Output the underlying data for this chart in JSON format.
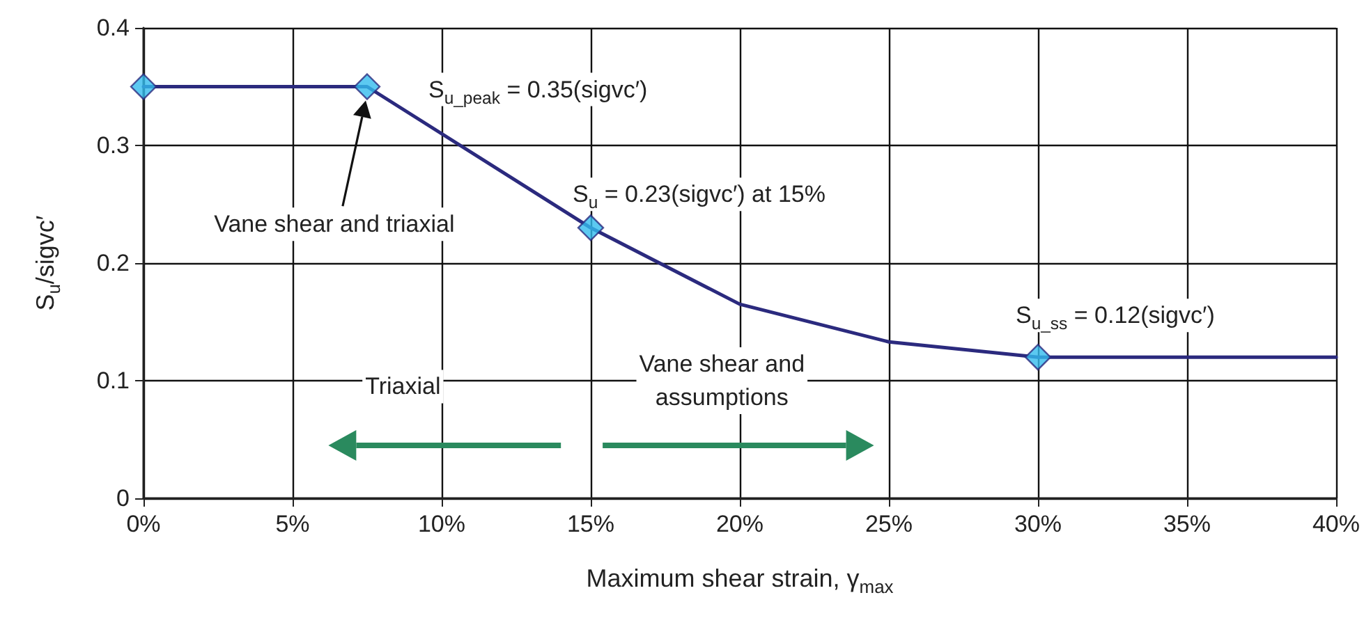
{
  "chart_data": {
    "type": "line",
    "xlabel": "Maximum shear strain, γ$_{max}$",
    "ylabel": "S$_{u}$/sigvc′",
    "xlim": [
      0,
      40
    ],
    "xticks": [
      {
        "value": 0,
        "label": "0%"
      },
      {
        "value": 5,
        "label": "5%"
      },
      {
        "value": 10,
        "label": "10%"
      },
      {
        "value": 15,
        "label": "15%"
      },
      {
        "value": 20,
        "label": "20%"
      },
      {
        "value": 25,
        "label": "25%"
      },
      {
        "value": 30,
        "label": "30%"
      },
      {
        "value": 35,
        "label": "35%"
      },
      {
        "value": 40,
        "label": "40%"
      }
    ],
    "ylim": [
      0,
      0.4
    ],
    "yticks": [
      0,
      0.1,
      0.2,
      0.3,
      0.4
    ],
    "grid": true,
    "series": [
      {
        "color": "#2b2a7e",
        "x": [
          0,
          7.5,
          15,
          20,
          25,
          30,
          40
        ],
        "values": [
          0.35,
          0.35,
          0.23,
          0.165,
          0.133,
          0.12,
          0.12
        ],
        "marker": "none",
        "line_style": "solid"
      },
      {
        "type": "scatter",
        "color": "#33bbee",
        "x": [
          0,
          7.5,
          15,
          30
        ],
        "values": [
          0.35,
          0.35,
          0.23,
          0.12
        ],
        "marker": "diamond"
      }
    ],
    "annotations": [
      {
        "text": "S$_{u_peak}$ = 0.35(sigvc′)",
        "x": 7.5,
        "y": 0.35
      },
      {
        "text": "S$_{u}$ = 0.23(sigvc′) at 15%",
        "x": 15,
        "y": 0.23
      },
      {
        "text": "S$_{u_ss}$ = 0.12(sigvc′)",
        "x": 30,
        "y": 0.12
      },
      "Vane shear and triaxial",
      "Triaxial",
      "Vane shear and\nassumptions"
    ]
  }
}
